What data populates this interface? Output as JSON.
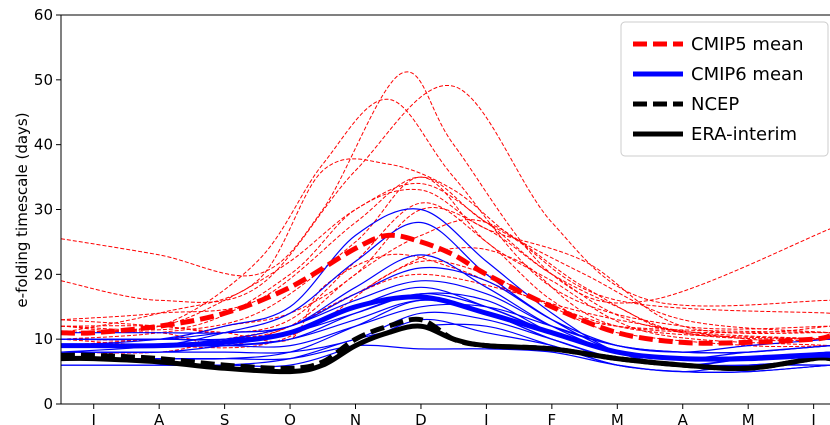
{
  "chart_data": {
    "type": "line",
    "title": "",
    "xlabel": "",
    "ylabel": "e-folding timescale (days)",
    "ylim": [
      0,
      60
    ],
    "yticks": [
      0,
      10,
      20,
      30,
      40,
      50,
      60
    ],
    "x_categories": [
      "J",
      "A",
      "S",
      "O",
      "N",
      "D",
      "J",
      "F",
      "M",
      "A",
      "M",
      "J"
    ],
    "xlim": [
      -0.5,
      11.25
    ],
    "grid": false,
    "legend": {
      "placement": "top-right",
      "entries": [
        {
          "label": "CMIP5 mean",
          "color": "#ff0000",
          "style": "dashed"
        },
        {
          "label": "CMIP6 mean",
          "color": "#0000ff",
          "style": "solid"
        },
        {
          "label": "NCEP",
          "color": "#000000",
          "style": "dashed"
        },
        {
          "label": "ERA-interim",
          "color": "#000000",
          "style": "solid"
        }
      ]
    },
    "mean_series": [
      {
        "name": "CMIP5 mean",
        "color": "#ff0000",
        "style": "dashed",
        "x": [
          -0.5,
          0,
          1,
          2,
          3,
          4,
          4.5,
          5,
          5.5,
          6,
          7,
          8,
          9,
          10,
          11,
          11.25
        ],
        "y": [
          11,
          11,
          12,
          14,
          18,
          24,
          26,
          25,
          23,
          20,
          15,
          11,
          9.5,
          9.5,
          10,
          10.5
        ]
      },
      {
        "name": "CMIP6 mean",
        "color": "#0000ff",
        "style": "solid",
        "x": [
          -0.5,
          0,
          1,
          2,
          3,
          4,
          5,
          6,
          7,
          8,
          9,
          10,
          11,
          11.25
        ],
        "y": [
          9,
          9,
          9,
          9.5,
          11,
          15,
          16.5,
          14,
          11,
          8,
          7,
          7,
          7.5,
          7.5
        ]
      },
      {
        "name": "NCEP",
        "color": "#000000",
        "style": "dashed",
        "x": [
          -0.5,
          0,
          1,
          2,
          3,
          3.5,
          4,
          4.5,
          5,
          5.5,
          6,
          7,
          8,
          9,
          10,
          11,
          11.25
        ],
        "y": [
          7.5,
          7.5,
          7,
          6,
          5.5,
          6.5,
          10,
          12,
          13,
          10,
          9,
          8.5,
          7,
          6,
          5.5,
          7,
          7
        ]
      },
      {
        "name": "ERA-interim",
        "color": "#000000",
        "style": "solid",
        "x": [
          -0.5,
          0,
          1,
          2,
          3,
          3.5,
          4,
          4.5,
          5,
          5.5,
          6,
          7,
          8,
          9,
          10,
          11,
          11.25
        ],
        "y": [
          7,
          7,
          6.5,
          5.5,
          5,
          6,
          9,
          11,
          12,
          10,
          9,
          8.5,
          7,
          6,
          5.5,
          7,
          7
        ]
      }
    ],
    "cmip5_models": [
      {
        "x": [
          -0.5,
          1,
          2.5,
          3.5,
          4.7,
          5.5,
          7,
          8.5,
          11.25
        ],
        "y": [
          25.5,
          23,
          20,
          30,
          51,
          40,
          20,
          16,
          27
        ]
      },
      {
        "x": [
          -0.5,
          1,
          2.5,
          4,
          5.5,
          7,
          8.5,
          11.25
        ],
        "y": [
          19,
          16,
          18,
          36,
          49,
          28,
          16,
          16
        ]
      },
      {
        "x": [
          -0.5,
          1,
          2.5,
          3.5,
          4.5,
          5.5,
          7,
          9,
          11.25
        ],
        "y": [
          12,
          12,
          22,
          37,
          47,
          35,
          18,
          12,
          12
        ]
      },
      {
        "x": [
          -0.5,
          1,
          2.5,
          3.5,
          4.5,
          5.5,
          6.5,
          8,
          11.25
        ],
        "y": [
          11,
          14,
          19,
          36,
          37,
          33,
          25,
          16,
          14
        ]
      },
      {
        "x": [
          -0.5,
          1.5,
          3,
          4,
          5,
          6,
          7.5,
          9,
          11.25
        ],
        "y": [
          12,
          12,
          20,
          30,
          33,
          27,
          22,
          12,
          11
        ]
      },
      {
        "x": [
          -0.5,
          1,
          2.5,
          4,
          5,
          6,
          7.5,
          9,
          11.25
        ],
        "y": [
          13,
          14,
          16,
          28,
          35,
          28,
          20,
          13,
          11
        ]
      },
      {
        "x": [
          -0.5,
          1,
          2,
          3,
          4,
          5,
          6,
          7,
          8,
          9,
          11.25
        ],
        "y": [
          10,
          10,
          12,
          14,
          20,
          30,
          27,
          20,
          15,
          11,
          10
        ]
      },
      {
        "x": [
          -0.5,
          1,
          2,
          3,
          4,
          5,
          6,
          7,
          8.5,
          11.25
        ],
        "y": [
          11,
          12,
          16,
          22,
          30,
          34,
          28,
          20,
          12,
          10
        ]
      },
      {
        "x": [
          -0.5,
          1,
          2,
          3,
          4,
          5,
          6,
          7.5,
          9,
          11.25
        ],
        "y": [
          9,
          10,
          10,
          12,
          20,
          26,
          28,
          18,
          11,
          10
        ]
      },
      {
        "x": [
          -0.5,
          1,
          2.5,
          3.5,
          4.5,
          5.5,
          6.5,
          8,
          11.25
        ],
        "y": [
          10,
          9,
          9,
          13,
          20,
          24,
          22,
          12,
          10
        ]
      },
      {
        "x": [
          -0.5,
          1,
          2,
          3,
          4,
          5,
          6,
          7,
          8,
          11.25
        ],
        "y": [
          12,
          12,
          11,
          13,
          22,
          31,
          25,
          16,
          12,
          11
        ]
      },
      {
        "x": [
          -0.5,
          1,
          2,
          3,
          4,
          5,
          6,
          7,
          8,
          10,
          11.25
        ],
        "y": [
          8,
          8,
          10,
          12,
          17,
          22,
          20,
          15,
          11,
          9,
          9
        ]
      },
      {
        "x": [
          -0.5,
          1,
          2,
          3,
          3.5,
          4.5,
          5.5,
          6.5,
          8,
          10,
          11.25
        ],
        "y": [
          13,
          12,
          11,
          10,
          18,
          23,
          21,
          17,
          13,
          10,
          10
        ]
      },
      {
        "x": [
          -0.5,
          1,
          2.5,
          4,
          5,
          6,
          7,
          8.5,
          11.25
        ],
        "y": [
          10,
          11,
          14,
          25,
          35,
          25,
          19,
          11,
          9
        ]
      },
      {
        "x": [
          -0.5,
          1,
          2,
          3,
          4,
          5,
          6.5,
          8,
          10,
          11.25
        ],
        "y": [
          11,
          11,
          9,
          12,
          17,
          20,
          17,
          12,
          11,
          12
        ]
      }
    ],
    "cmip6_models": [
      {
        "x": [
          -0.5,
          1,
          2,
          3,
          4,
          5,
          6,
          7,
          8,
          9,
          10,
          11.25
        ],
        "y": [
          9,
          10,
          12,
          15,
          26,
          30,
          22,
          14,
          8,
          6,
          6,
          7
        ]
      },
      {
        "x": [
          -0.5,
          1,
          2,
          3,
          4,
          5,
          6,
          7,
          8,
          9,
          10,
          11.25
        ],
        "y": [
          8,
          9,
          11,
          14,
          22,
          28,
          20,
          13,
          8,
          6,
          7,
          8
        ]
      },
      {
        "x": [
          -0.5,
          1,
          2,
          3,
          4,
          5,
          6,
          7,
          8,
          9,
          11.25
        ],
        "y": [
          10,
          10,
          11,
          12,
          18,
          23,
          18,
          12,
          8,
          7,
          8
        ]
      },
      {
        "x": [
          -0.5,
          1,
          2,
          3,
          4,
          5,
          6,
          7,
          8,
          9,
          10,
          11.25
        ],
        "y": [
          9,
          9,
          9,
          10,
          14,
          17,
          15,
          11,
          8,
          7,
          7,
          8
        ]
      },
      {
        "x": [
          -0.5,
          1,
          2,
          3,
          4,
          5,
          6,
          7,
          8,
          9,
          10,
          11.25
        ],
        "y": [
          7,
          7,
          7,
          8,
          12,
          16,
          14,
          10,
          7,
          6,
          6,
          6
        ]
      },
      {
        "x": [
          -0.5,
          1,
          2,
          3,
          4,
          5,
          6,
          7,
          8,
          9,
          10,
          11.25
        ],
        "y": [
          6,
          6,
          6,
          6,
          9,
          13,
          11,
          9,
          6,
          5,
          5,
          6
        ]
      },
      {
        "x": [
          -0.5,
          1,
          2,
          3,
          4,
          5,
          6,
          7,
          8,
          9,
          10,
          11.25
        ],
        "y": [
          10,
          10,
          10,
          12,
          16,
          19,
          17,
          12,
          9,
          8,
          8,
          9
        ]
      },
      {
        "x": [
          -0.5,
          1,
          2,
          3,
          4,
          5,
          6,
          7,
          8,
          9,
          10,
          11.25
        ],
        "y": [
          8,
          8,
          8,
          8,
          10,
          14,
          13,
          10,
          7,
          6,
          6,
          7
        ]
      },
      {
        "x": [
          -0.5,
          1,
          2,
          3,
          4,
          5,
          6,
          7,
          8,
          9,
          10,
          11.25
        ],
        "y": [
          9,
          9,
          10,
          11,
          15,
          18,
          15,
          11,
          8,
          7,
          7,
          8
        ]
      },
      {
        "x": [
          -0.5,
          1,
          2,
          3,
          4,
          5,
          6,
          7,
          8,
          9,
          10,
          11.25
        ],
        "y": [
          7,
          7,
          7,
          7,
          9,
          8.5,
          8.5,
          8,
          6,
          5,
          6,
          6
        ]
      },
      {
        "x": [
          -0.5,
          1,
          2,
          3,
          4,
          5,
          6,
          7,
          8,
          9,
          10,
          11.25
        ],
        "y": [
          11,
          11,
          11,
          12,
          17,
          21,
          19,
          13,
          9,
          8,
          9,
          10
        ]
      },
      {
        "x": [
          -0.5,
          1,
          2,
          3,
          4,
          5,
          6,
          7,
          8,
          9,
          10,
          11.25
        ],
        "y": [
          8,
          8,
          9,
          10,
          13,
          16,
          14,
          10,
          7,
          6,
          7,
          8
        ]
      },
      {
        "x": [
          -0.5,
          1,
          2,
          3,
          4,
          5,
          6,
          7,
          8,
          9,
          10,
          11.25
        ],
        "y": [
          9,
          9,
          9,
          9,
          12,
          15,
          15,
          12,
          9,
          8,
          8,
          9
        ]
      },
      {
        "x": [
          -0.5,
          1,
          2,
          3,
          4,
          5,
          6,
          7,
          8,
          9,
          10,
          11.25
        ],
        "y": [
          6,
          6,
          6,
          7,
          10,
          12,
          12,
          9,
          6,
          5,
          5,
          6
        ]
      },
      {
        "x": [
          -0.5,
          1,
          2,
          3,
          4,
          5,
          6,
          7,
          8,
          9,
          10,
          11.25
        ],
        "y": [
          10,
          10,
          10,
          11,
          14,
          17,
          16,
          11,
          8,
          7,
          8,
          9
        ]
      }
    ]
  }
}
